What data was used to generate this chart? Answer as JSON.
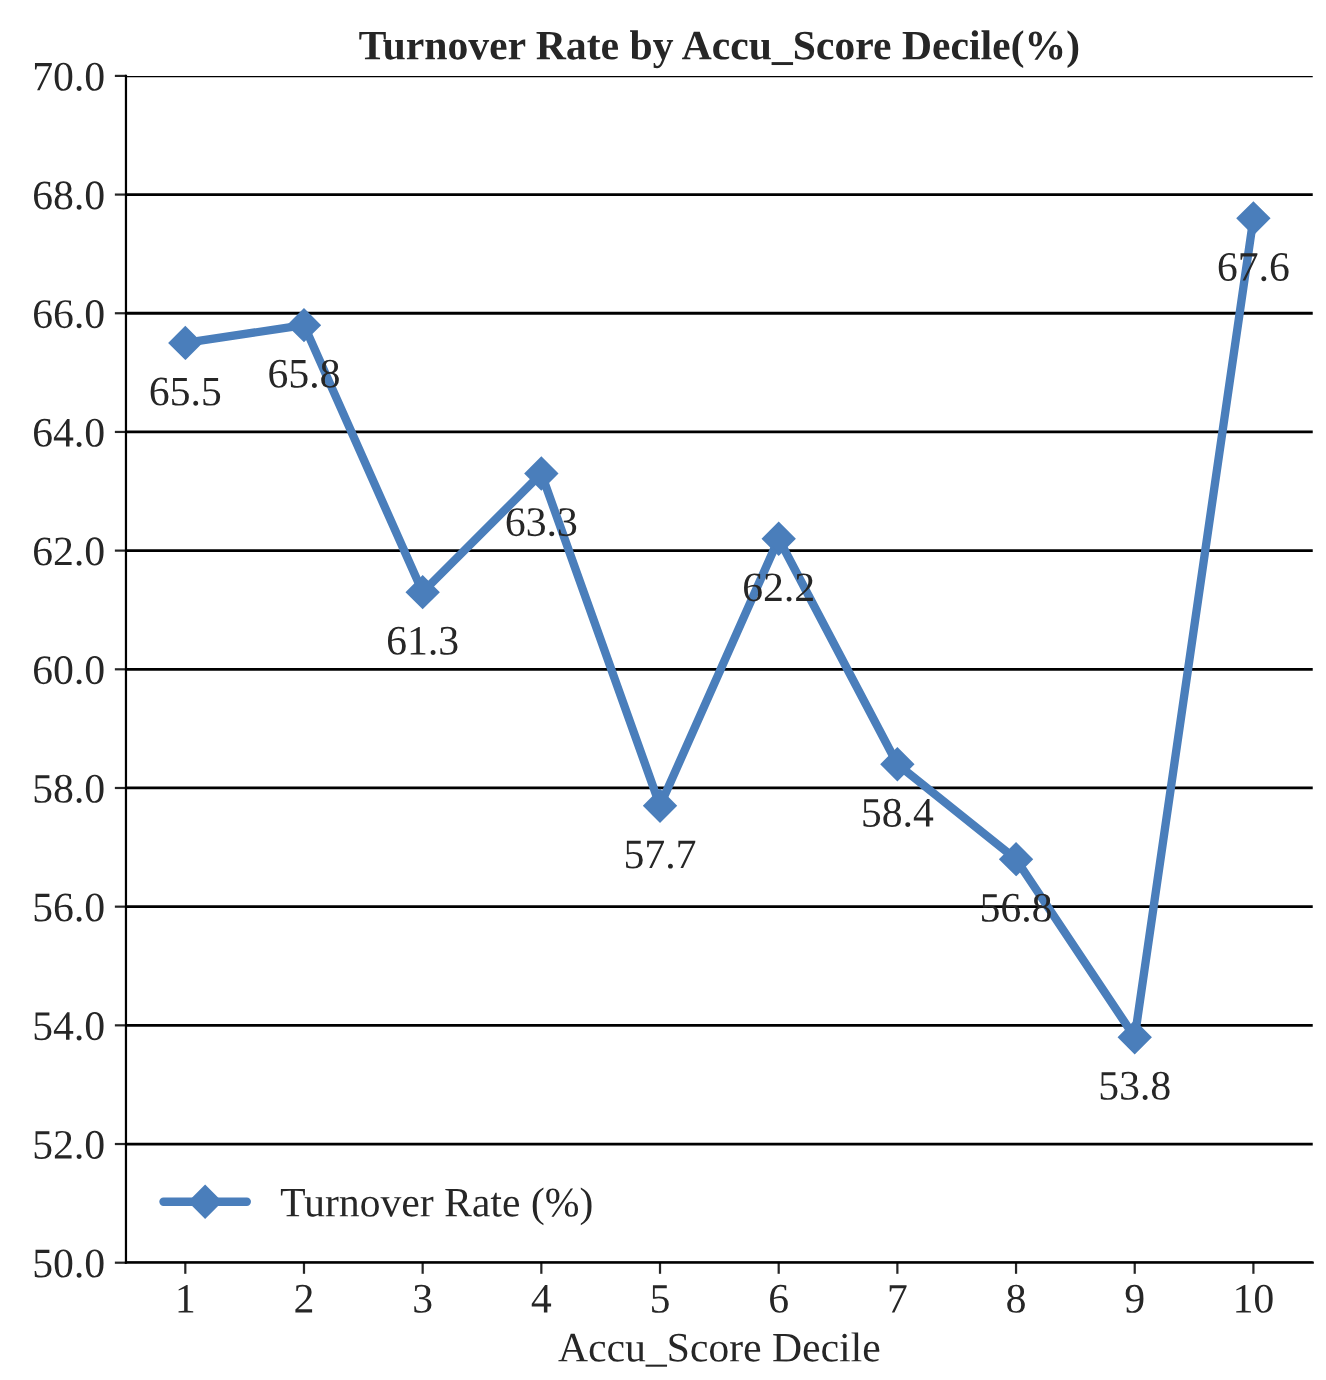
{
  "chart_data": {
    "type": "line",
    "title": "Turnover Rate by Accu_Score Decile(%)",
    "xlabel": "Accu_Score Decile",
    "categories": [
      "1",
      "2",
      "3",
      "4",
      "5",
      "6",
      "7",
      "8",
      "9",
      "10"
    ],
    "series": [
      {
        "name": "Turnover Rate (%)",
        "color": "#4a7ebb",
        "values": [
          65.5,
          65.8,
          61.3,
          63.3,
          57.7,
          62.2,
          58.4,
          56.8,
          53.8,
          67.6
        ]
      }
    ],
    "ylim": [
      50,
      70
    ],
    "yticks": [
      {
        "value": 50,
        "label": "50.0"
      },
      {
        "value": 52,
        "label": "52.0"
      },
      {
        "value": 54,
        "label": "54.0"
      },
      {
        "value": 56,
        "label": "56.0"
      },
      {
        "value": 58,
        "label": "58.0"
      },
      {
        "value": 60,
        "label": "60.0"
      },
      {
        "value": 62,
        "label": "62.0"
      },
      {
        "value": 64,
        "label": "64.0"
      },
      {
        "value": 66,
        "label": "66.0"
      },
      {
        "value": 68,
        "label": "68.0"
      },
      {
        "value": 70,
        "label": "70.0"
      }
    ],
    "grid": "y",
    "legend": "bottom left",
    "marker": "diamond",
    "line_style": "solid",
    "data_labels": true
  }
}
